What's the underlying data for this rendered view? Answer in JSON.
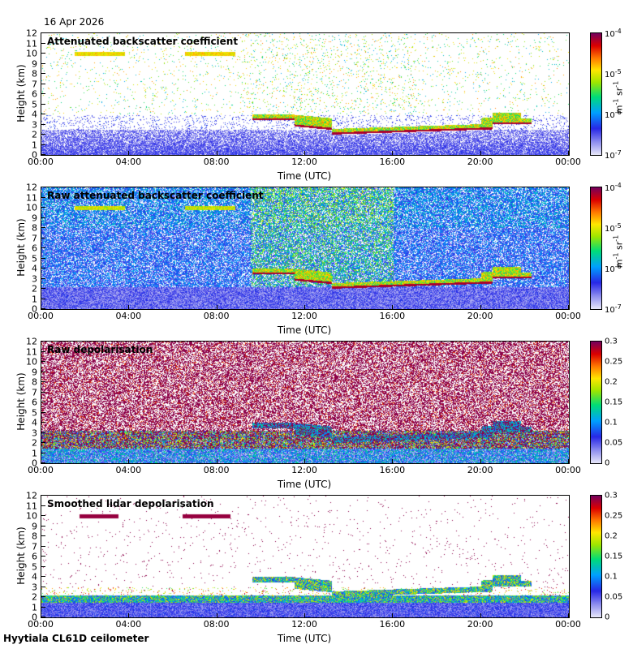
{
  "date": "16 Apr 2026",
  "footer": "Hyytiala CL61D ceilometer",
  "chart_data": [
    {
      "type": "heatmap",
      "title": "Attenuated backscatter coefficient",
      "xlabel": "Time (UTC)",
      "ylabel": "Height (km)",
      "xticks": [
        "00:00",
        "04:00",
        "08:00",
        "12:00",
        "16:00",
        "20:00",
        "00:00"
      ],
      "yticks": [
        "0",
        "1",
        "2",
        "3",
        "4",
        "5",
        "6",
        "7",
        "8",
        "9",
        "10",
        "11",
        "12"
      ],
      "ylim": [
        0,
        12
      ],
      "xlim_hours": [
        0,
        24
      ],
      "colorbar": {
        "scale": "log",
        "range": [
          1e-07,
          0.0001
        ],
        "ticks": [
          {
            "base": "10",
            "exp": "-4"
          },
          {
            "base": "10",
            "exp": "-5"
          },
          {
            "base": "10",
            "exp": "-6"
          },
          {
            "base": "10",
            "exp": "-7"
          }
        ],
        "unit": {
          "m": "m",
          "m_exp": "-1",
          "sr": "sr",
          "sr_exp": "-1"
        }
      },
      "features": {
        "cloud_base_km": [
          3.8,
          2.2,
          3.5
        ],
        "cloud_hours": [
          9.5,
          22.3
        ],
        "cirrus_km": 10
      }
    },
    {
      "type": "heatmap",
      "title": "Raw attenuated backscatter coefficient",
      "xlabel": "Time (UTC)",
      "ylabel": "Height (km)",
      "xticks": [
        "00:00",
        "04:00",
        "08:00",
        "12:00",
        "16:00",
        "20:00",
        "00:00"
      ],
      "yticks": [
        "0",
        "1",
        "2",
        "3",
        "4",
        "5",
        "6",
        "7",
        "8",
        "9",
        "10",
        "11",
        "12"
      ],
      "ylim": [
        0,
        12
      ],
      "xlim_hours": [
        0,
        24
      ],
      "colorbar": {
        "scale": "log",
        "range": [
          1e-07,
          0.0001
        ],
        "ticks": [
          {
            "base": "10",
            "exp": "-4"
          },
          {
            "base": "10",
            "exp": "-5"
          },
          {
            "base": "10",
            "exp": "-6"
          },
          {
            "base": "10",
            "exp": "-7"
          }
        ],
        "unit": {
          "m": "m",
          "m_exp": "-1",
          "sr": "sr",
          "sr_exp": "-1"
        }
      }
    },
    {
      "type": "heatmap",
      "title": "Raw depolarisation",
      "xlabel": "Time (UTC)",
      "ylabel": "Height (km)",
      "xticks": [
        "00:00",
        "04:00",
        "08:00",
        "12:00",
        "16:00",
        "20:00",
        "00:00"
      ],
      "yticks": [
        "0",
        "1",
        "2",
        "3",
        "4",
        "5",
        "6",
        "7",
        "8",
        "9",
        "10",
        "11",
        "12"
      ],
      "ylim": [
        0,
        12
      ],
      "xlim_hours": [
        0,
        24
      ],
      "colorbar": {
        "scale": "linear",
        "range": [
          0,
          0.3
        ],
        "ticks": [
          "0.3",
          "0.25",
          "0.2",
          "0.15",
          "0.1",
          "0.05",
          "0"
        ]
      }
    },
    {
      "type": "heatmap",
      "title": "Smoothed lidar depolarisation",
      "xlabel": "Time (UTC)",
      "ylabel": "Height (km)",
      "xticks": [
        "00:00",
        "04:00",
        "08:00",
        "12:00",
        "16:00",
        "20:00",
        "00:00"
      ],
      "yticks": [
        "0",
        "1",
        "2",
        "3",
        "4",
        "5",
        "6",
        "7",
        "8",
        "9",
        "10",
        "11",
        "12"
      ],
      "ylim": [
        0,
        12
      ],
      "xlim_hours": [
        0,
        24
      ],
      "colorbar": {
        "scale": "linear",
        "range": [
          0,
          0.3
        ],
        "ticks": [
          "0.3",
          "0.25",
          "0.2",
          "0.15",
          "0.1",
          "0.05",
          "0"
        ]
      }
    }
  ]
}
